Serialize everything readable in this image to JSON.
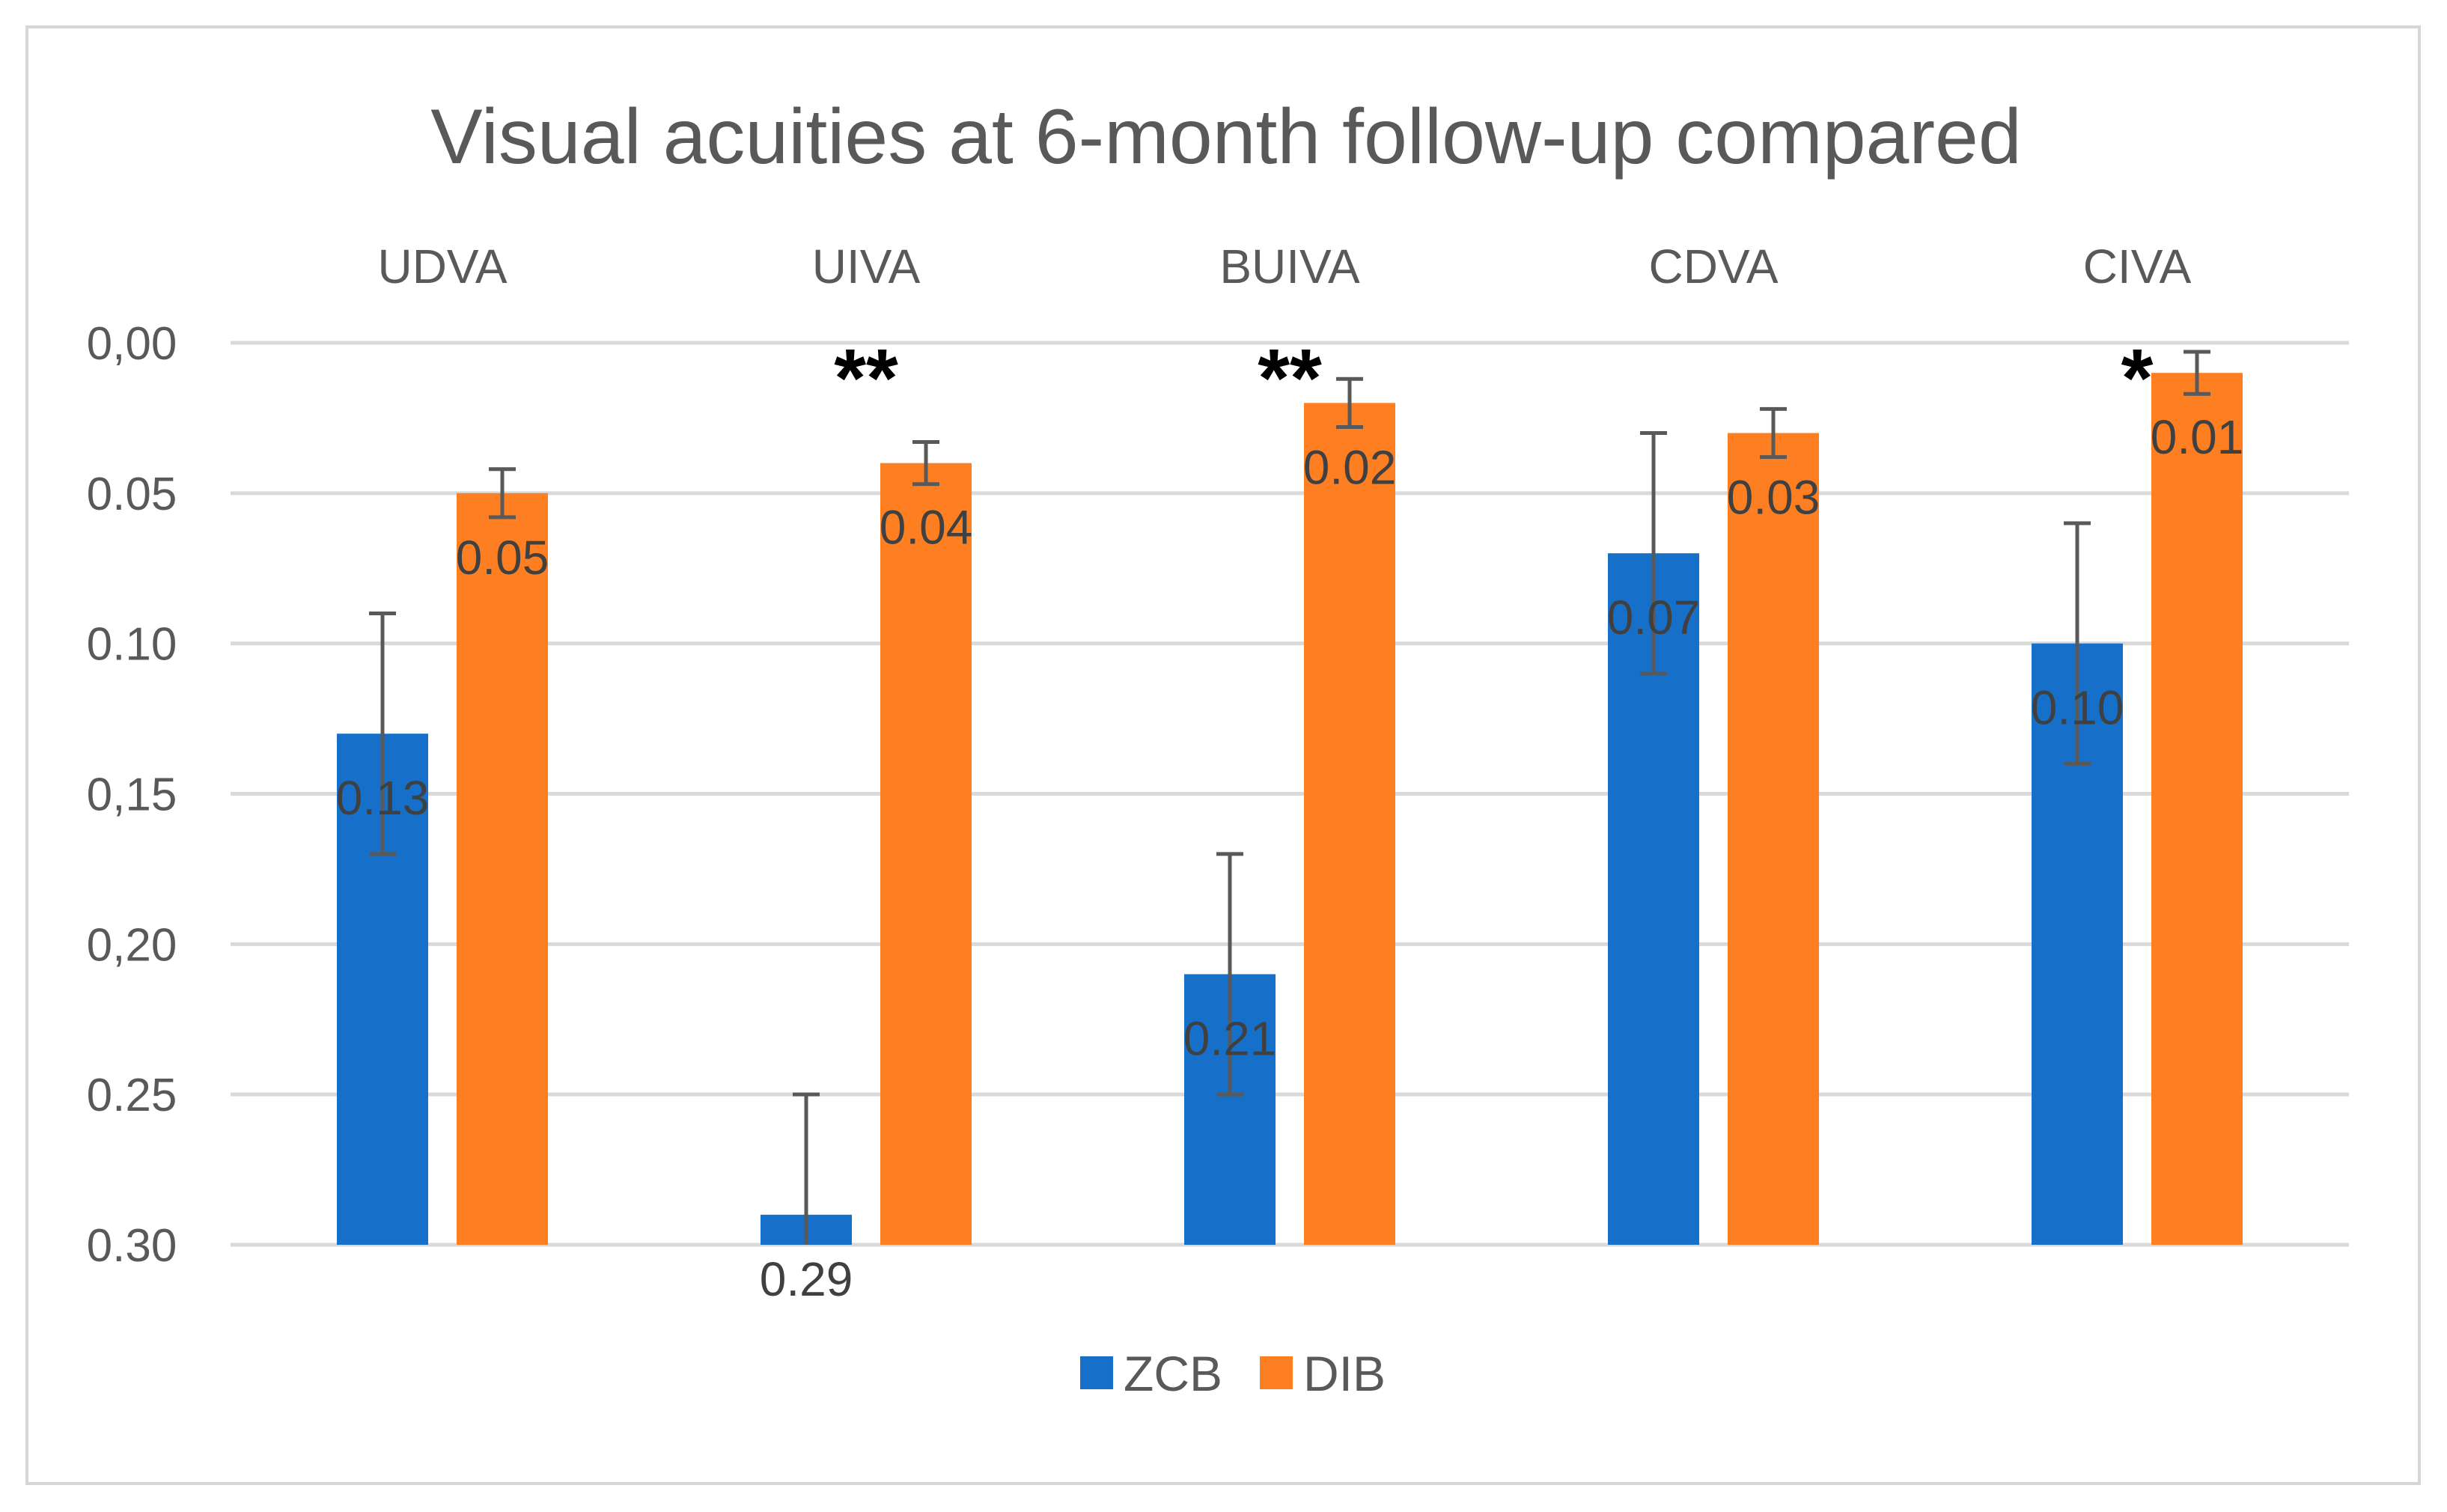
{
  "chart_data": {
    "type": "bar",
    "title": "Visual acuities at 6-month follow-up compared",
    "categories": [
      "UDVA",
      "UIVA",
      "BUIVA",
      "CDVA",
      "CIVA"
    ],
    "y_axis": {
      "reversed": true,
      "ylim": [
        0.0,
        0.3
      ],
      "ticks": [
        0.0,
        0.05,
        0.1,
        0.15,
        0.2,
        0.25,
        0.3
      ],
      "tick_labels": [
        "0,00",
        "0.05",
        "0.10",
        "0,15",
        "0,20",
        "0.25",
        "0.30"
      ]
    },
    "series": [
      {
        "name": "ZCB",
        "color": "#1670c9",
        "values": [
          0.13,
          0.29,
          0.21,
          0.07,
          0.1
        ],
        "labels": [
          "0.13",
          "0.29",
          "0.21",
          "0.07",
          "0.10"
        ],
        "error": [
          0.04,
          0.04,
          0.04,
          0.04,
          0.04
        ]
      },
      {
        "name": "DIB",
        "color": "#fd7f22",
        "values": [
          0.05,
          0.04,
          0.02,
          0.03,
          0.01
        ],
        "labels": [
          "0.05",
          "0.04",
          "0.02",
          "0.03",
          "0.01"
        ],
        "error": [
          0.008,
          0.007,
          0.008,
          0.008,
          0.007
        ]
      }
    ],
    "significance": [
      "",
      "**",
      "**",
      "",
      "*"
    ],
    "grid": true,
    "legend": "bottom-center"
  }
}
